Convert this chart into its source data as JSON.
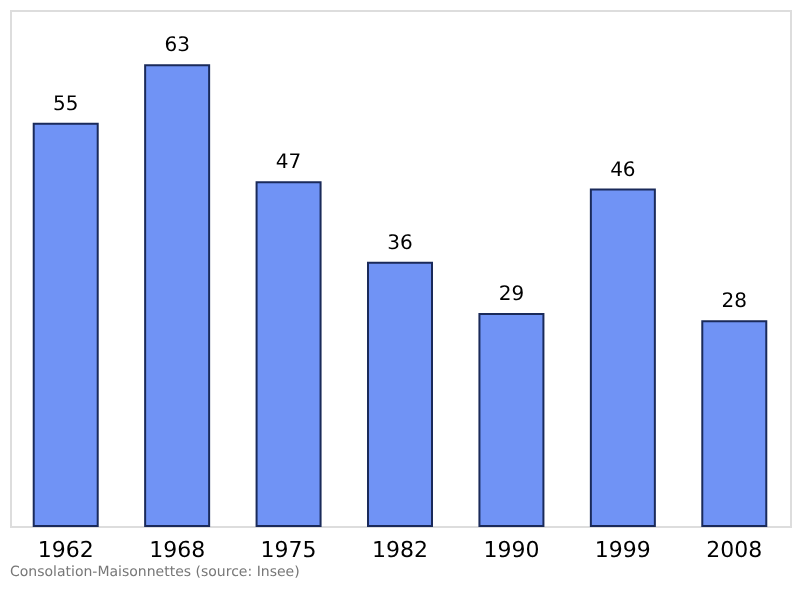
{
  "chart_data": {
    "type": "bar",
    "categories": [
      "1962",
      "1968",
      "1975",
      "1982",
      "1990",
      "1999",
      "2008"
    ],
    "values": [
      55,
      63,
      47,
      36,
      29,
      46,
      28
    ],
    "color": "#7093f5",
    "data_labels": true,
    "annotations": [
      "Consolation-Maisonnettes    (source: Insee)"
    ]
  }
}
